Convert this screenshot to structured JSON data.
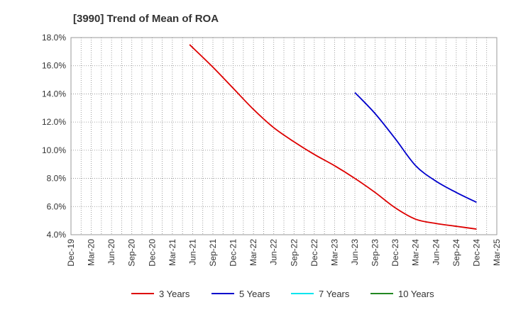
{
  "chart_data": {
    "type": "line",
    "title": "[3990]  Trend of Mean of ROA",
    "xlabel": "",
    "ylabel": "",
    "x_ticks": [
      "Dec-19",
      "Mar-20",
      "Jun-20",
      "Sep-20",
      "Dec-20",
      "Mar-21",
      "Jun-21",
      "Sep-21",
      "Dec-21",
      "Mar-22",
      "Jun-22",
      "Sep-22",
      "Dec-22",
      "Mar-23",
      "Jun-23",
      "Sep-23",
      "Dec-23",
      "Mar-24",
      "Jun-24",
      "Sep-24",
      "Dec-24",
      "Mar-25"
    ],
    "y_ticks": [
      "18.0%",
      "16.0%",
      "14.0%",
      "12.0%",
      "10.0%",
      "8.0%",
      "6.0%",
      "4.0%"
    ],
    "ylim": [
      4.0,
      18.0
    ],
    "grid": true,
    "legend_position": "bottom",
    "series": [
      {
        "name": "3 Years",
        "color": "#dd0000",
        "x": [
          "Mar-21",
          "Jun-21",
          "Sep-21",
          "Dec-21",
          "Mar-22",
          "Jun-22",
          "Sep-22",
          "Dec-22",
          "Mar-23",
          "Jun-23",
          "Sep-23",
          "Dec-23",
          "Mar-24",
          "Jun-24",
          "Sep-24",
          "Dec-24"
        ],
        "values": [
          17.5,
          17.5,
          15.9,
          14.4,
          12.9,
          11.6,
          10.6,
          9.7,
          8.9,
          8.0,
          7.0,
          5.9,
          5.1,
          4.8,
          4.6,
          4.4
        ]
      },
      {
        "name": "5 Years",
        "color": "#0000cc",
        "x": [
          "Jun-23",
          "Sep-23",
          "Dec-23",
          "Mar-24",
          "Jun-24",
          "Sep-24",
          "Dec-24"
        ],
        "values": [
          14.1,
          12.6,
          10.8,
          8.9,
          7.8,
          7.0,
          6.3
        ]
      },
      {
        "name": "7 Years",
        "color": "#00e5ee",
        "x": [],
        "values": []
      },
      {
        "name": "10 Years",
        "color": "#228822",
        "x": [],
        "values": []
      }
    ]
  }
}
